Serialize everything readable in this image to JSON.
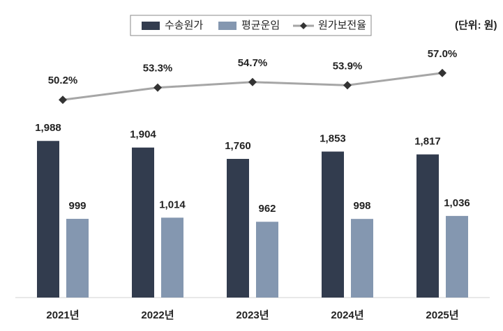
{
  "chart_data": {
    "type": "bar-line",
    "unit_label": "(단위: 원)",
    "categories": [
      "2021년",
      "2022년",
      "2023년",
      "2024년",
      "2025년"
    ],
    "series": [
      {
        "name": "수송원가",
        "type": "bar",
        "color": "#323c4e",
        "label_color": "#222222",
        "values": [
          1988,
          1904,
          1760,
          1853,
          1817
        ],
        "value_labels": [
          "1,988",
          "1,904",
          "1,760",
          "1,853",
          "1,817"
        ]
      },
      {
        "name": "평균운임",
        "type": "bar",
        "color": "#8497b0",
        "label_color": "#595959",
        "values": [
          999,
          1014,
          962,
          998,
          1036
        ],
        "value_labels": [
          "999",
          "1,014",
          "962",
          "998",
          "1,036"
        ]
      },
      {
        "name": "원가보전율",
        "type": "line",
        "axis": "y2",
        "color": "#a6a6a6",
        "marker_color": "#333333",
        "values": [
          50.2,
          53.3,
          54.7,
          53.9,
          57.0
        ],
        "value_labels": [
          "50.2%",
          "53.3%",
          "54.7%",
          "53.9%",
          "57.0%"
        ]
      }
    ],
    "ylim": [
      0,
      3600
    ],
    "y2lim": [
      0,
      72
    ],
    "grid": false
  }
}
